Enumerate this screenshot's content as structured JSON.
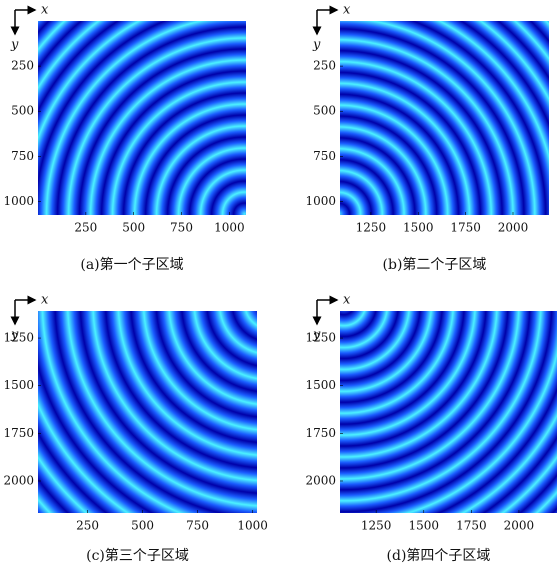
{
  "chart_data": [
    {
      "type": "image",
      "caption": "(a)第一个子区域",
      "x_label": "x",
      "y_label": "y",
      "xlim": [
        0,
        1087
      ],
      "ylim": [
        0,
        1075
      ],
      "xticks": [
        250,
        500,
        750,
        1000
      ],
      "yticks": [
        250,
        500,
        750,
        1000
      ],
      "colormap": [
        "#4cf2ff",
        "#1a5cff",
        "#0000a8"
      ]
    },
    {
      "type": "image",
      "caption": "(b)第二个子区域",
      "x_label": "x",
      "y_label": "y",
      "xlim": [
        1087,
        2190
      ],
      "ylim": [
        0,
        1075
      ],
      "xticks": [
        1250,
        1500,
        1750,
        2000
      ],
      "yticks": [
        250,
        500,
        750,
        1000
      ],
      "colormap": [
        "#4cf2ff",
        "#1a5cff",
        "#0000a8"
      ]
    },
    {
      "type": "image",
      "caption": "(c)第三个子区域",
      "x_label": "x",
      "y_label": "y",
      "xlim": [
        25,
        1020
      ],
      "ylim": [
        1108,
        2168
      ],
      "xticks": [
        250,
        500,
        750,
        1000
      ],
      "yticks": [
        1250,
        1500,
        1750,
        2000
      ],
      "colormap": [
        "#4cf2ff",
        "#1a5cff",
        "#0000a8"
      ]
    },
    {
      "type": "image",
      "caption": "(d)第四个子区域",
      "x_label": "x",
      "y_label": "y",
      "xlim": [
        1060,
        2200
      ],
      "ylim": [
        1108,
        2168
      ],
      "xticks": [
        1250,
        1500,
        1750,
        2000
      ],
      "yticks": [
        1250,
        1500,
        1750,
        2000
      ],
      "colormap": [
        "#4cf2ff",
        "#1a5cff",
        "#0000a8"
      ]
    }
  ]
}
